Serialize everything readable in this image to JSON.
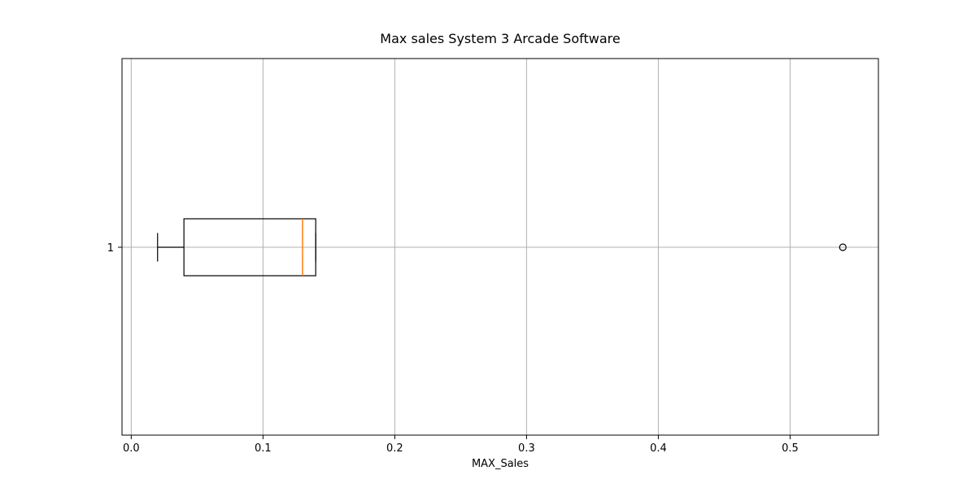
{
  "chart_data": {
    "type": "boxplot",
    "orientation": "horizontal",
    "title": "Max sales System 3 Arcade Software",
    "xlabel": "MAX_Sales",
    "ylabel": "",
    "xlim": [
      -0.007,
      0.567
    ],
    "xticks": [
      0.0,
      0.1,
      0.2,
      0.3,
      0.4,
      0.5
    ],
    "xtick_labels": [
      "0.0",
      "0.1",
      "0.2",
      "0.3",
      "0.4",
      "0.5"
    ],
    "yticks": [
      "1"
    ],
    "grid": true,
    "boxes": [
      {
        "label": "1",
        "whisker_low": 0.02,
        "q1": 0.04,
        "median": 0.13,
        "q3": 0.14,
        "whisker_high": 0.14,
        "outliers": [
          0.54
        ]
      }
    ],
    "colors": {
      "box": "#000000",
      "median": "#ff7f0e",
      "grid": "#b0b0b0"
    }
  }
}
